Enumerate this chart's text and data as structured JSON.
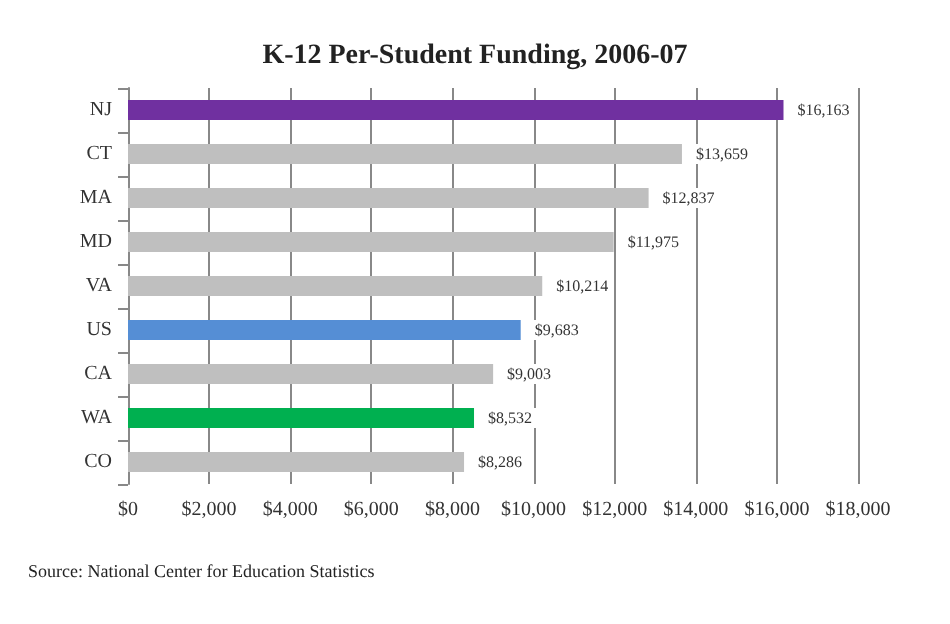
{
  "chart_data": {
    "type": "bar",
    "orientation": "horizontal",
    "title": "K-12 Per-Student Funding, 2006-07",
    "categories": [
      "NJ",
      "CT",
      "MA",
      "MD",
      "VA",
      "US",
      "CA",
      "WA",
      "CO"
    ],
    "values": [
      16163,
      13659,
      12837,
      11975,
      10214,
      9683,
      9003,
      8532,
      8286
    ],
    "colors": [
      "#7030a0",
      "#bfbfbf",
      "#bfbfbf",
      "#bfbfbf",
      "#bfbfbf",
      "#558ed5",
      "#bfbfbf",
      "#00b050",
      "#bfbfbf"
    ],
    "value_labels": [
      "$16,163",
      "$13,659",
      "$12,837",
      "$11,975",
      "$10,214",
      "$9,683",
      "$9,003",
      "$8,532",
      "$8,286"
    ],
    "xlim": [
      0,
      18000
    ],
    "xticks": [
      {
        "value": 0,
        "label": "$0"
      },
      {
        "value": 2000,
        "label": "$2,000"
      },
      {
        "value": 4000,
        "label": "$4,000"
      },
      {
        "value": 6000,
        "label": "$6,000"
      },
      {
        "value": 8000,
        "label": "$8,000"
      },
      {
        "value": 10000,
        "label": "$10,000"
      },
      {
        "value": 12000,
        "label": "$12,000"
      },
      {
        "value": 14000,
        "label": "$14,000"
      },
      {
        "value": 16000,
        "label": "$16,000"
      },
      {
        "value": 18000,
        "label": "$18,000"
      }
    ],
    "grid": "x",
    "annotations": [
      "Source: National Center for Education Statistics"
    ]
  }
}
